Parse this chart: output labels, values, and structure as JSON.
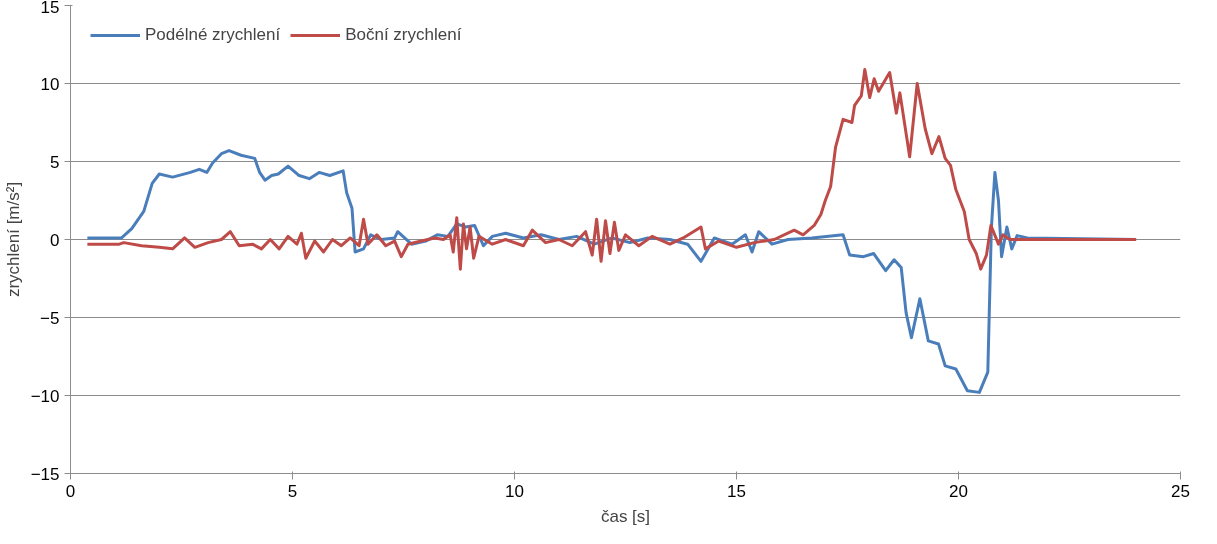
{
  "chart_data": {
    "type": "line",
    "xlabel": "čas [s]",
    "ylabel": "zrychlení [m/s²]",
    "xlim": [
      0,
      25
    ],
    "ylim": [
      -15,
      15
    ],
    "xticks": [
      0,
      5,
      10,
      15,
      20,
      25
    ],
    "yticks": [
      -15,
      -10,
      -5,
      0,
      5,
      10,
      15
    ],
    "grid": "y",
    "legend": "top left",
    "marker": "none",
    "line_style": "solid",
    "series": [
      {
        "name": "Podélné zrychlení",
        "color": "#4a7ebb",
        "x": [
          0.38,
          1.15,
          1.38,
          1.65,
          1.84,
          2.0,
          2.3,
          2.7,
          2.9,
          3.07,
          3.2,
          3.4,
          3.57,
          3.84,
          4.15,
          4.26,
          4.38,
          4.53,
          4.68,
          4.9,
          5.15,
          5.38,
          5.6,
          5.84,
          6.14,
          6.22,
          6.34,
          6.41,
          6.6,
          6.76,
          7.0,
          7.3,
          7.37,
          7.68,
          8.0,
          8.26,
          8.5,
          8.7,
          8.9,
          9.1,
          9.3,
          9.5,
          9.8,
          10.2,
          10.6,
          11.0,
          11.4,
          11.8,
          12.2,
          12.6,
          13.0,
          13.5,
          13.9,
          14.2,
          14.5,
          14.9,
          15.2,
          15.35,
          15.5,
          15.8,
          16.16,
          16.7,
          17.4,
          17.55,
          17.86,
          18.09,
          18.36,
          18.55,
          18.71,
          18.82,
          18.94,
          19.13,
          19.32,
          19.55,
          19.7,
          19.94,
          20.2,
          20.47,
          20.66,
          20.74,
          20.82,
          20.9,
          20.97,
          21.09,
          21.2,
          21.32,
          21.55,
          24.0
        ],
        "values": [
          0.1,
          0.1,
          0.7,
          1.8,
          3.6,
          4.2,
          4.0,
          4.3,
          4.5,
          4.3,
          4.9,
          5.5,
          5.7,
          5.4,
          5.2,
          4.3,
          3.8,
          4.1,
          4.2,
          4.7,
          4.1,
          3.9,
          4.3,
          4.1,
          4.4,
          3.0,
          2.0,
          -0.8,
          -0.6,
          0.3,
          0.0,
          0.1,
          0.5,
          -0.3,
          -0.1,
          0.3,
          0.2,
          1.0,
          0.8,
          0.9,
          -0.4,
          0.2,
          0.4,
          0.1,
          0.3,
          0.0,
          0.2,
          -0.3,
          0.1,
          -0.2,
          0.1,
          0.0,
          -0.3,
          -1.4,
          0.1,
          -0.3,
          0.3,
          -0.8,
          0.5,
          -0.3,
          0.0,
          0.1,
          0.3,
          -1.0,
          -1.1,
          -0.9,
          -2.0,
          -1.3,
          -1.8,
          -4.7,
          -6.3,
          -3.8,
          -6.5,
          -6.7,
          -8.1,
          -8.3,
          -9.7,
          -9.8,
          -8.5,
          0.7,
          4.3,
          2.5,
          -1.1,
          0.8,
          -0.6,
          0.25,
          0.1,
          0.0
        ]
      },
      {
        "name": "Boční zrychlení",
        "color": "#be4b48",
        "x": [
          0.38,
          1.1,
          1.2,
          1.6,
          2.0,
          2.3,
          2.57,
          2.8,
          3.1,
          3.4,
          3.6,
          3.8,
          4.1,
          4.3,
          4.5,
          4.7,
          4.9,
          5.1,
          5.2,
          5.3,
          5.5,
          5.7,
          5.9,
          6.1,
          6.3,
          6.5,
          6.6,
          6.7,
          6.9,
          7.1,
          7.3,
          7.45,
          7.6,
          7.9,
          8.2,
          8.4,
          8.55,
          8.62,
          8.7,
          8.78,
          8.85,
          8.92,
          9.0,
          9.08,
          9.2,
          9.5,
          9.8,
          10.2,
          10.4,
          10.7,
          11.0,
          11.3,
          11.6,
          11.75,
          11.85,
          11.95,
          12.05,
          12.15,
          12.25,
          12.35,
          12.5,
          12.8,
          13.1,
          13.5,
          13.8,
          14.2,
          14.3,
          14.6,
          15.0,
          15.4,
          15.85,
          16.3,
          16.5,
          16.75,
          16.9,
          17.0,
          17.12,
          17.23,
          17.4,
          17.6,
          17.66,
          17.81,
          17.89,
          18.0,
          18.1,
          18.2,
          18.45,
          18.6,
          18.68,
          18.9,
          19.07,
          19.25,
          19.4,
          19.56,
          19.7,
          19.82,
          19.94,
          20.13,
          20.24,
          20.4,
          20.5,
          20.63,
          20.73,
          20.9,
          21.0,
          21.16,
          24.0
        ],
        "values": [
          -0.3,
          -0.3,
          -0.2,
          -0.4,
          -0.5,
          -0.6,
          0.1,
          -0.5,
          -0.2,
          0.0,
          0.5,
          -0.4,
          -0.3,
          -0.6,
          0.0,
          -0.6,
          0.2,
          -0.3,
          0.4,
          -1.2,
          -0.1,
          -0.8,
          0.0,
          -0.4,
          0.1,
          -0.4,
          1.3,
          -0.3,
          0.3,
          -0.4,
          -0.1,
          -1.1,
          -0.3,
          -0.1,
          0.1,
          0.0,
          0.3,
          -0.8,
          1.4,
          -1.9,
          1.0,
          -0.6,
          0.8,
          -1.2,
          0.2,
          -0.3,
          0.0,
          -0.4,
          0.6,
          -0.2,
          0.0,
          -0.4,
          0.5,
          -1.0,
          1.3,
          -1.4,
          1.2,
          -0.9,
          1.1,
          -0.7,
          0.3,
          -0.4,
          0.2,
          -0.3,
          0.1,
          0.8,
          -0.6,
          -0.1,
          -0.5,
          -0.2,
          0.0,
          0.6,
          0.3,
          0.9,
          1.6,
          2.5,
          3.4,
          5.9,
          7.7,
          7.5,
          8.6,
          9.2,
          10.9,
          9.1,
          10.3,
          9.5,
          10.7,
          8.1,
          9.4,
          5.3,
          10.0,
          7.1,
          5.5,
          6.6,
          5.2,
          4.75,
          3.2,
          1.8,
          0.0,
          -0.9,
          -1.9,
          -1.0,
          0.9,
          -0.3,
          0.3,
          0.0,
          0.0
        ]
      }
    ]
  }
}
